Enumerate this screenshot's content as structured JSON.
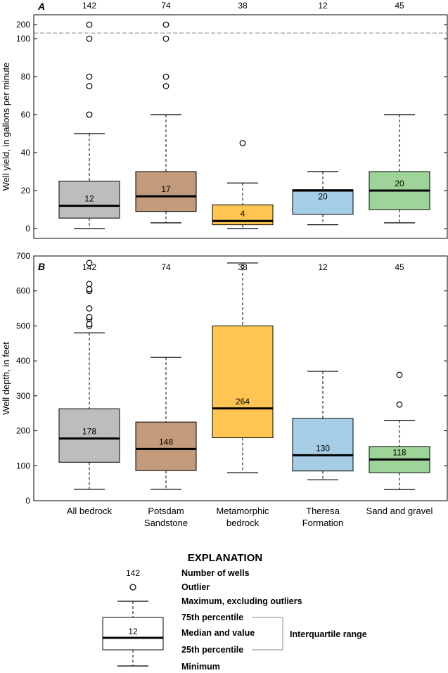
{
  "colors": {
    "All bedrock": "#bdbdbd",
    "Potsdam Sandstone": "#c29a7c",
    "Metamorphic bedrock": "#ffc552",
    "Theresa Formation": "#a6cde6",
    "Sand and gravel": "#9ed497"
  },
  "chart_data": [
    {
      "type": "box",
      "panel": "A",
      "ylabel": "Well yield, in gallons per minute",
      "categories": [
        {
          "label": "All bedrock",
          "n": 142,
          "q1": 5.5,
          "median": 12,
          "median_label": "12",
          "q3": 25,
          "min": 0,
          "whisker_max": 50,
          "outliers": [
            60,
            60,
            75,
            80,
            100,
            200
          ]
        },
        {
          "label": "Potsdam Sandstone",
          "n": 74,
          "q1": 9,
          "median": 17,
          "median_label": "17",
          "q3": 30,
          "min": 3,
          "whisker_max": 60,
          "outliers": [
            75,
            80,
            100,
            200
          ]
        },
        {
          "label": "Metamorphic bedrock",
          "n": 38,
          "q1": 2,
          "median": 4,
          "median_label": "4",
          "q3": 12.5,
          "min": 0,
          "whisker_max": 24,
          "outliers": [
            45
          ]
        },
        {
          "label": "Theresa Formation",
          "n": 12,
          "q1": 7.5,
          "median": 20,
          "median_label": "20",
          "q3": 20.5,
          "min": 2,
          "whisker_max": 30,
          "outliers": []
        },
        {
          "label": "Sand and gravel",
          "n": 45,
          "q1": 10,
          "median": 20,
          "median_label": "20",
          "q3": 30,
          "min": 3,
          "whisker_max": 60,
          "outliers": []
        }
      ],
      "yticks_lower": [
        0,
        20,
        40,
        60,
        80,
        100
      ],
      "yticks_upper": [
        200
      ],
      "ylim_lower": [
        -5,
        102
      ],
      "break_between": [
        100,
        200
      ],
      "ylim_upper": [
        200,
        200
      ]
    },
    {
      "type": "box",
      "panel": "B",
      "ylabel": "Well depth, in feet",
      "categories": [
        {
          "label": "All bedrock",
          "n": 142,
          "q1": 110,
          "median": 178,
          "median_label": "178",
          "q3": 263,
          "min": 33,
          "whisker_max": 480,
          "outliers": [
            500,
            505,
            520,
            525,
            550,
            600,
            605,
            620,
            680
          ]
        },
        {
          "label": "Potsdam Sandstone",
          "n": 74,
          "q1": 86,
          "median": 148,
          "median_label": "148",
          "q3": 225,
          "min": 33,
          "whisker_max": 410,
          "outliers": []
        },
        {
          "label": "Metamorphic bedrock",
          "n": 38,
          "q1": 180,
          "median": 264,
          "median_label": "264",
          "q3": 500,
          "min": 80,
          "whisker_max": 680,
          "outliers": []
        },
        {
          "label": "Theresa Formation",
          "n": 12,
          "q1": 85,
          "median": 130,
          "median_label": "130",
          "q3": 235,
          "min": 60,
          "whisker_max": 370,
          "outliers": []
        },
        {
          "label": "Sand and gravel",
          "n": 45,
          "q1": 80,
          "median": 118,
          "median_label": "118",
          "q3": 155,
          "min": 32,
          "whisker_max": 230,
          "outliers": [
            275,
            360
          ]
        }
      ],
      "yticks": [
        0,
        100,
        200,
        300,
        400,
        500,
        600,
        700
      ],
      "ylim": [
        0,
        700
      ]
    }
  ],
  "xlabels": [
    [
      "All bedrock"
    ],
    [
      "Potsdam",
      "Sandstone"
    ],
    [
      "Metamorphic",
      "bedrock"
    ],
    [
      "Theresa",
      "Formation"
    ],
    [
      "Sand and gravel"
    ]
  ],
  "explanation": {
    "title": "EXPLANATION",
    "count_example": "142",
    "median_example": "12",
    "items": {
      "number_of_wells": "Number of wells",
      "outlier": "Outlier",
      "maximum": "Maximum, excluding outliers",
      "p75": "75th percentile",
      "median": "Median and value",
      "p25": "25th percentile",
      "minimum": "Minimum",
      "iqr": "Interquartile range"
    }
  }
}
